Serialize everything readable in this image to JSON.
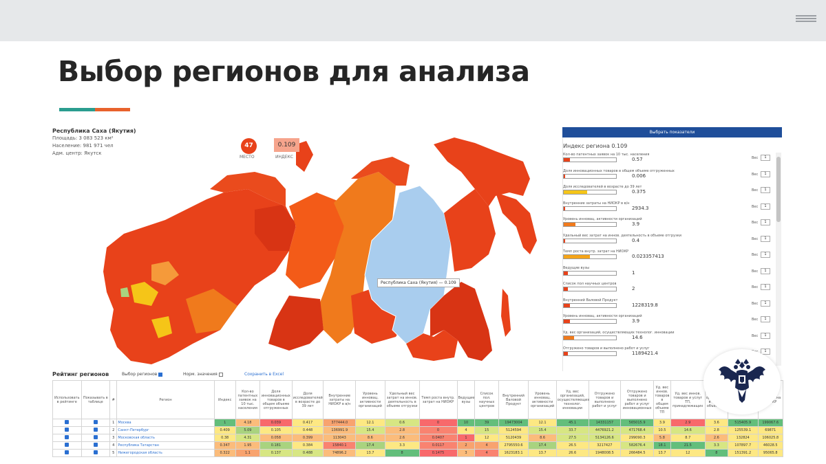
{
  "slide": {
    "title": "Выбор регионов для анализа",
    "menu_icon": "hamburger-icon"
  },
  "colors": {
    "accent_teal": "#2a9d8f",
    "accent_orange": "#e8622c",
    "map_selected": "#a9cdee",
    "map_red": "#e8421a",
    "button_blue": "#1f4e9a"
  },
  "region_info": {
    "name": "Республика Саха (Якутия)",
    "area": "Площадь: 3 083 523 км²",
    "population": "Население: 981 971 чел",
    "center": "Адм. центр: Якутск",
    "rank": "47",
    "rank_label": "МЕСТО",
    "index": "0.109",
    "index_label": "ИНДЕКС"
  },
  "map": {
    "tooltip": "Республика Саха (Якутия) — 0.109"
  },
  "panel": {
    "button_label": "Выбрать показатели",
    "index_label": "Индекс региона  0.109",
    "weight_label": "Вес",
    "indicators": [
      {
        "label": "Кол-во патентных заявок на 10 тыс. населения",
        "value": "0.57",
        "fill": 0.12,
        "color": "#e8421a",
        "weight": "1"
      },
      {
        "label": "Доля инновационных товаров в общем объеме отгруженных",
        "value": "0.006",
        "fill": 0.03,
        "color": "#e8421a",
        "weight": "1"
      },
      {
        "label": "Доля исследователей в возрасте до 39 лет",
        "value": "0.375",
        "fill": 0.45,
        "color": "#f5c518",
        "weight": "1"
      },
      {
        "label": "Внутренние затраты на НИОКР в в/н",
        "value": "2934.3",
        "fill": 0.02,
        "color": "#e8421a",
        "weight": "1"
      },
      {
        "label": "Уровень инновац. активности организаций",
        "value": "3.9",
        "fill": 0.22,
        "color": "#f07a1c",
        "weight": "1"
      },
      {
        "label": "Удельный вес затрат на иннов. деятельность в объеме отгрузки",
        "value": "0.4",
        "fill": 0.03,
        "color": "#e8421a",
        "weight": "1"
      },
      {
        "label": "Темп роста внутр. затрат на НИОКР",
        "value": "0.023357413",
        "fill": 0.5,
        "color": "#f5a418",
        "weight": "1"
      },
      {
        "label": "Ведущие вузы",
        "value": "1",
        "fill": 0.08,
        "color": "#e8421a",
        "weight": "1"
      },
      {
        "label": "Список пол научных центров",
        "value": "2",
        "fill": 0.08,
        "color": "#e8421a",
        "weight": "1"
      },
      {
        "label": "Внутренний Валовой Продукт",
        "value": "1228319.8",
        "fill": 0.12,
        "color": "#e8421a",
        "weight": "1"
      },
      {
        "label": "Уровень инновац. активности организаций",
        "value": "3.9",
        "fill": 0.12,
        "color": "#e8421a",
        "weight": "1"
      },
      {
        "label": "Уд. вес организаций, осуществляющих технолог. инновации",
        "value": "14.6",
        "fill": 0.2,
        "color": "#f07a1c",
        "weight": "1"
      },
      {
        "label": "Отгружено товаров и выполнено работ и услуг",
        "value": "1189421.4",
        "fill": 0.08,
        "color": "#e8421a",
        "weight": "1"
      }
    ]
  },
  "ratings": {
    "title": "Рейтинг регионов",
    "option_select": "Выбор регионов",
    "option_norm": "Норм. значения",
    "save_link": "Сохранить в Excel",
    "headers": [
      "Использовать в рейтинге",
      "Показывать в таблице",
      "#",
      "Регион",
      "Индекс",
      "Кол-во патентных заявок на 10 тыс. населения",
      "Доля инновационных товаров в общем объеме отгруженных",
      "Доля исследователей в возрасте до 39 лет",
      "Внутренние затраты на НИОКР в в/н",
      "Уровень инновац. активности организаций",
      "Удельный вес затрат на иннов. деятельность в объеме отгрузки",
      "Темп роста внутр. затрат на НИОКР",
      "Ведущие вузы",
      "Список пол. научных центров",
      "Внутренний Валовой Продукт",
      "Уровень инновац. активности организаций",
      "Уд. вес организаций, осуществляющих технолог. инновации",
      "Отгружено товаров и выполнено работ и услуг",
      "Отгружено товаров и выполнено работ и услуг инновационных",
      "Уд. вес иннов. товаров в общем объеме ТП",
      "Уд. вес иннов. товаров и услуг ТП, принадлежащих",
      "Уд. вес организаций в общем объеме ТП",
      "Внутренние затраты на исследования",
      "Затраты на НИОКР"
    ],
    "rows": [
      {
        "n": "1",
        "region": "Москва",
        "cells": [
          "1",
          "4.18",
          "0.039",
          "0.417",
          "377444.0",
          "12.1",
          "0.6",
          "0",
          "10",
          "39",
          "19473004",
          "12.1",
          "45.1",
          "14331157",
          "565015.9",
          "3.9",
          "2.9",
          "3.6",
          "515405.9",
          "199067.6"
        ]
      },
      {
        "n": "2",
        "region": "Санкт-Петербург",
        "cells": [
          "0.409",
          "5.09",
          "0.105",
          "0.448",
          "136991.9",
          "15.4",
          "2.8",
          "0",
          "4",
          "15",
          "5124594",
          "15.4",
          "33.7",
          "4476921.2",
          "471768.4",
          "10.5",
          "14.6",
          "2.8",
          "125539.1",
          "69871"
        ]
      },
      {
        "n": "3",
        "region": "Московская область",
        "cells": [
          "0.38",
          "4.31",
          "0.058",
          "0.399",
          "113043",
          "8.6",
          "2.6",
          "0.0407",
          "1",
          "12",
          "5120439",
          "8.6",
          "27.5",
          "5134126.6",
          "299090.3",
          "5.8",
          "8.7",
          "2.6",
          "132824",
          "106025.8"
        ]
      },
      {
        "n": "4",
        "region": "Республика Татарстан",
        "cells": [
          "0.347",
          "1.95",
          "0.181",
          "0.384",
          "15840.1",
          "17.4",
          "3.3",
          "0.0117",
          "2",
          "4",
          "2795550.6",
          "17.4",
          "26.5",
          "3217427",
          "582676.4",
          "18.1",
          "21.5",
          "3.3",
          "107897.7",
          "46028.5"
        ]
      },
      {
        "n": "5",
        "region": "Нижегородская область",
        "cells": [
          "0.322",
          "1.1",
          "0.137",
          "0.488",
          "74896.2",
          "13.7",
          "8",
          "0.1475",
          "3",
          "4",
          "1623183.1",
          "13.7",
          "26.6",
          "1948008.5",
          "266484.5",
          "13.7",
          "12",
          "8",
          "151391.2",
          "95065.8"
        ]
      }
    ],
    "cell_classes": [
      [
        "g1",
        "o1",
        "r1",
        "y1",
        "o2",
        "y1",
        "g3",
        "r1",
        "g1",
        "g1",
        "g1",
        "y1",
        "g1",
        "g1",
        "g1",
        "y1",
        "r1",
        "y1",
        "g1",
        "g1"
      ],
      [
        "y1",
        "g2",
        "y1",
        "y1",
        "o1",
        "g3",
        "o1",
        "r2",
        "y1",
        "g3",
        "y1",
        "g3",
        "g3",
        "g3",
        "g3",
        "y1",
        "g3",
        "y1",
        "y1",
        "y1"
      ],
      [
        "y1",
        "g3",
        "o1",
        "o1",
        "o1",
        "o1",
        "o1",
        "r2",
        "r1",
        "y1",
        "y1",
        "o1",
        "g3",
        "g3",
        "y1",
        "o1",
        "y1",
        "o1",
        "y1",
        "y1"
      ],
      [
        "o1",
        "o1",
        "g2",
        "y1",
        "r2",
        "g2",
        "y1",
        "r2",
        "o2",
        "o2",
        "y1",
        "g2",
        "y1",
        "y1",
        "g3",
        "g1",
        "g1",
        "g3",
        "y1",
        "y1"
      ],
      [
        "o1",
        "o2",
        "g3",
        "g3",
        "o1",
        "y1",
        "g1",
        "r1",
        "o1",
        "r2",
        "y1",
        "y1",
        "y1",
        "y1",
        "y1",
        "y1",
        "y1",
        "g1",
        "y1",
        "y1"
      ]
    ]
  }
}
